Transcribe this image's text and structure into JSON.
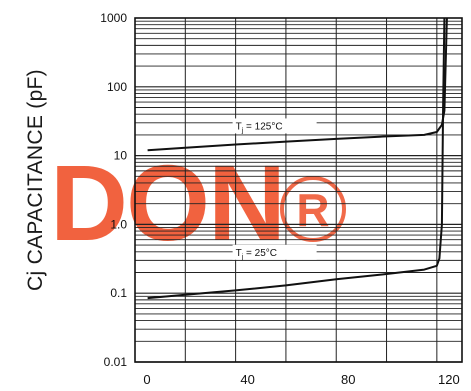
{
  "chart_data": {
    "type": "line",
    "title": "",
    "xlabel": "",
    "ylabel": "Cj CAPACITANCE (pF)",
    "y_scale": "log",
    "xlim": [
      0,
      130
    ],
    "ylim": [
      0.01,
      1000
    ],
    "x_ticks": [
      0,
      40,
      80,
      120
    ],
    "x_tick_labels": [
      "0",
      "40",
      "80",
      "120"
    ],
    "y_ticks": [
      0.01,
      0.1,
      1.0,
      10,
      100,
      1000
    ],
    "y_tick_labels": [
      "0.01",
      "0.1",
      "1.0",
      "10",
      "100",
      "1000"
    ],
    "grid": "log-minor",
    "series": [
      {
        "name": "Tj = 125°C",
        "label_parts": {
          "prefix": "T",
          "sub": "j",
          "suffix": " = 125°C"
        },
        "label_at": [
          40,
          24
        ],
        "color": "#111111",
        "x": [
          5,
          20,
          40,
          60,
          80,
          100,
          115,
          120,
          122,
          123,
          124
        ],
        "y": [
          12,
          13,
          14.5,
          16,
          17.5,
          19,
          20,
          22,
          28,
          45,
          1000
        ]
      },
      {
        "name": "Tj = 25°C",
        "label_parts": {
          "prefix": "T",
          "sub": "j",
          "suffix": " = 25°C"
        },
        "label_at": [
          40,
          0.35
        ],
        "color": "#111111",
        "x": [
          5,
          20,
          40,
          60,
          80,
          100,
          115,
          120,
          121,
          122,
          122.5,
          123
        ],
        "y": [
          0.085,
          0.095,
          0.11,
          0.13,
          0.16,
          0.19,
          0.22,
          0.25,
          0.32,
          1.0,
          50,
          1000
        ]
      }
    ]
  },
  "watermark": {
    "text": "DON",
    "mark": "®",
    "color": "#f05a35"
  }
}
